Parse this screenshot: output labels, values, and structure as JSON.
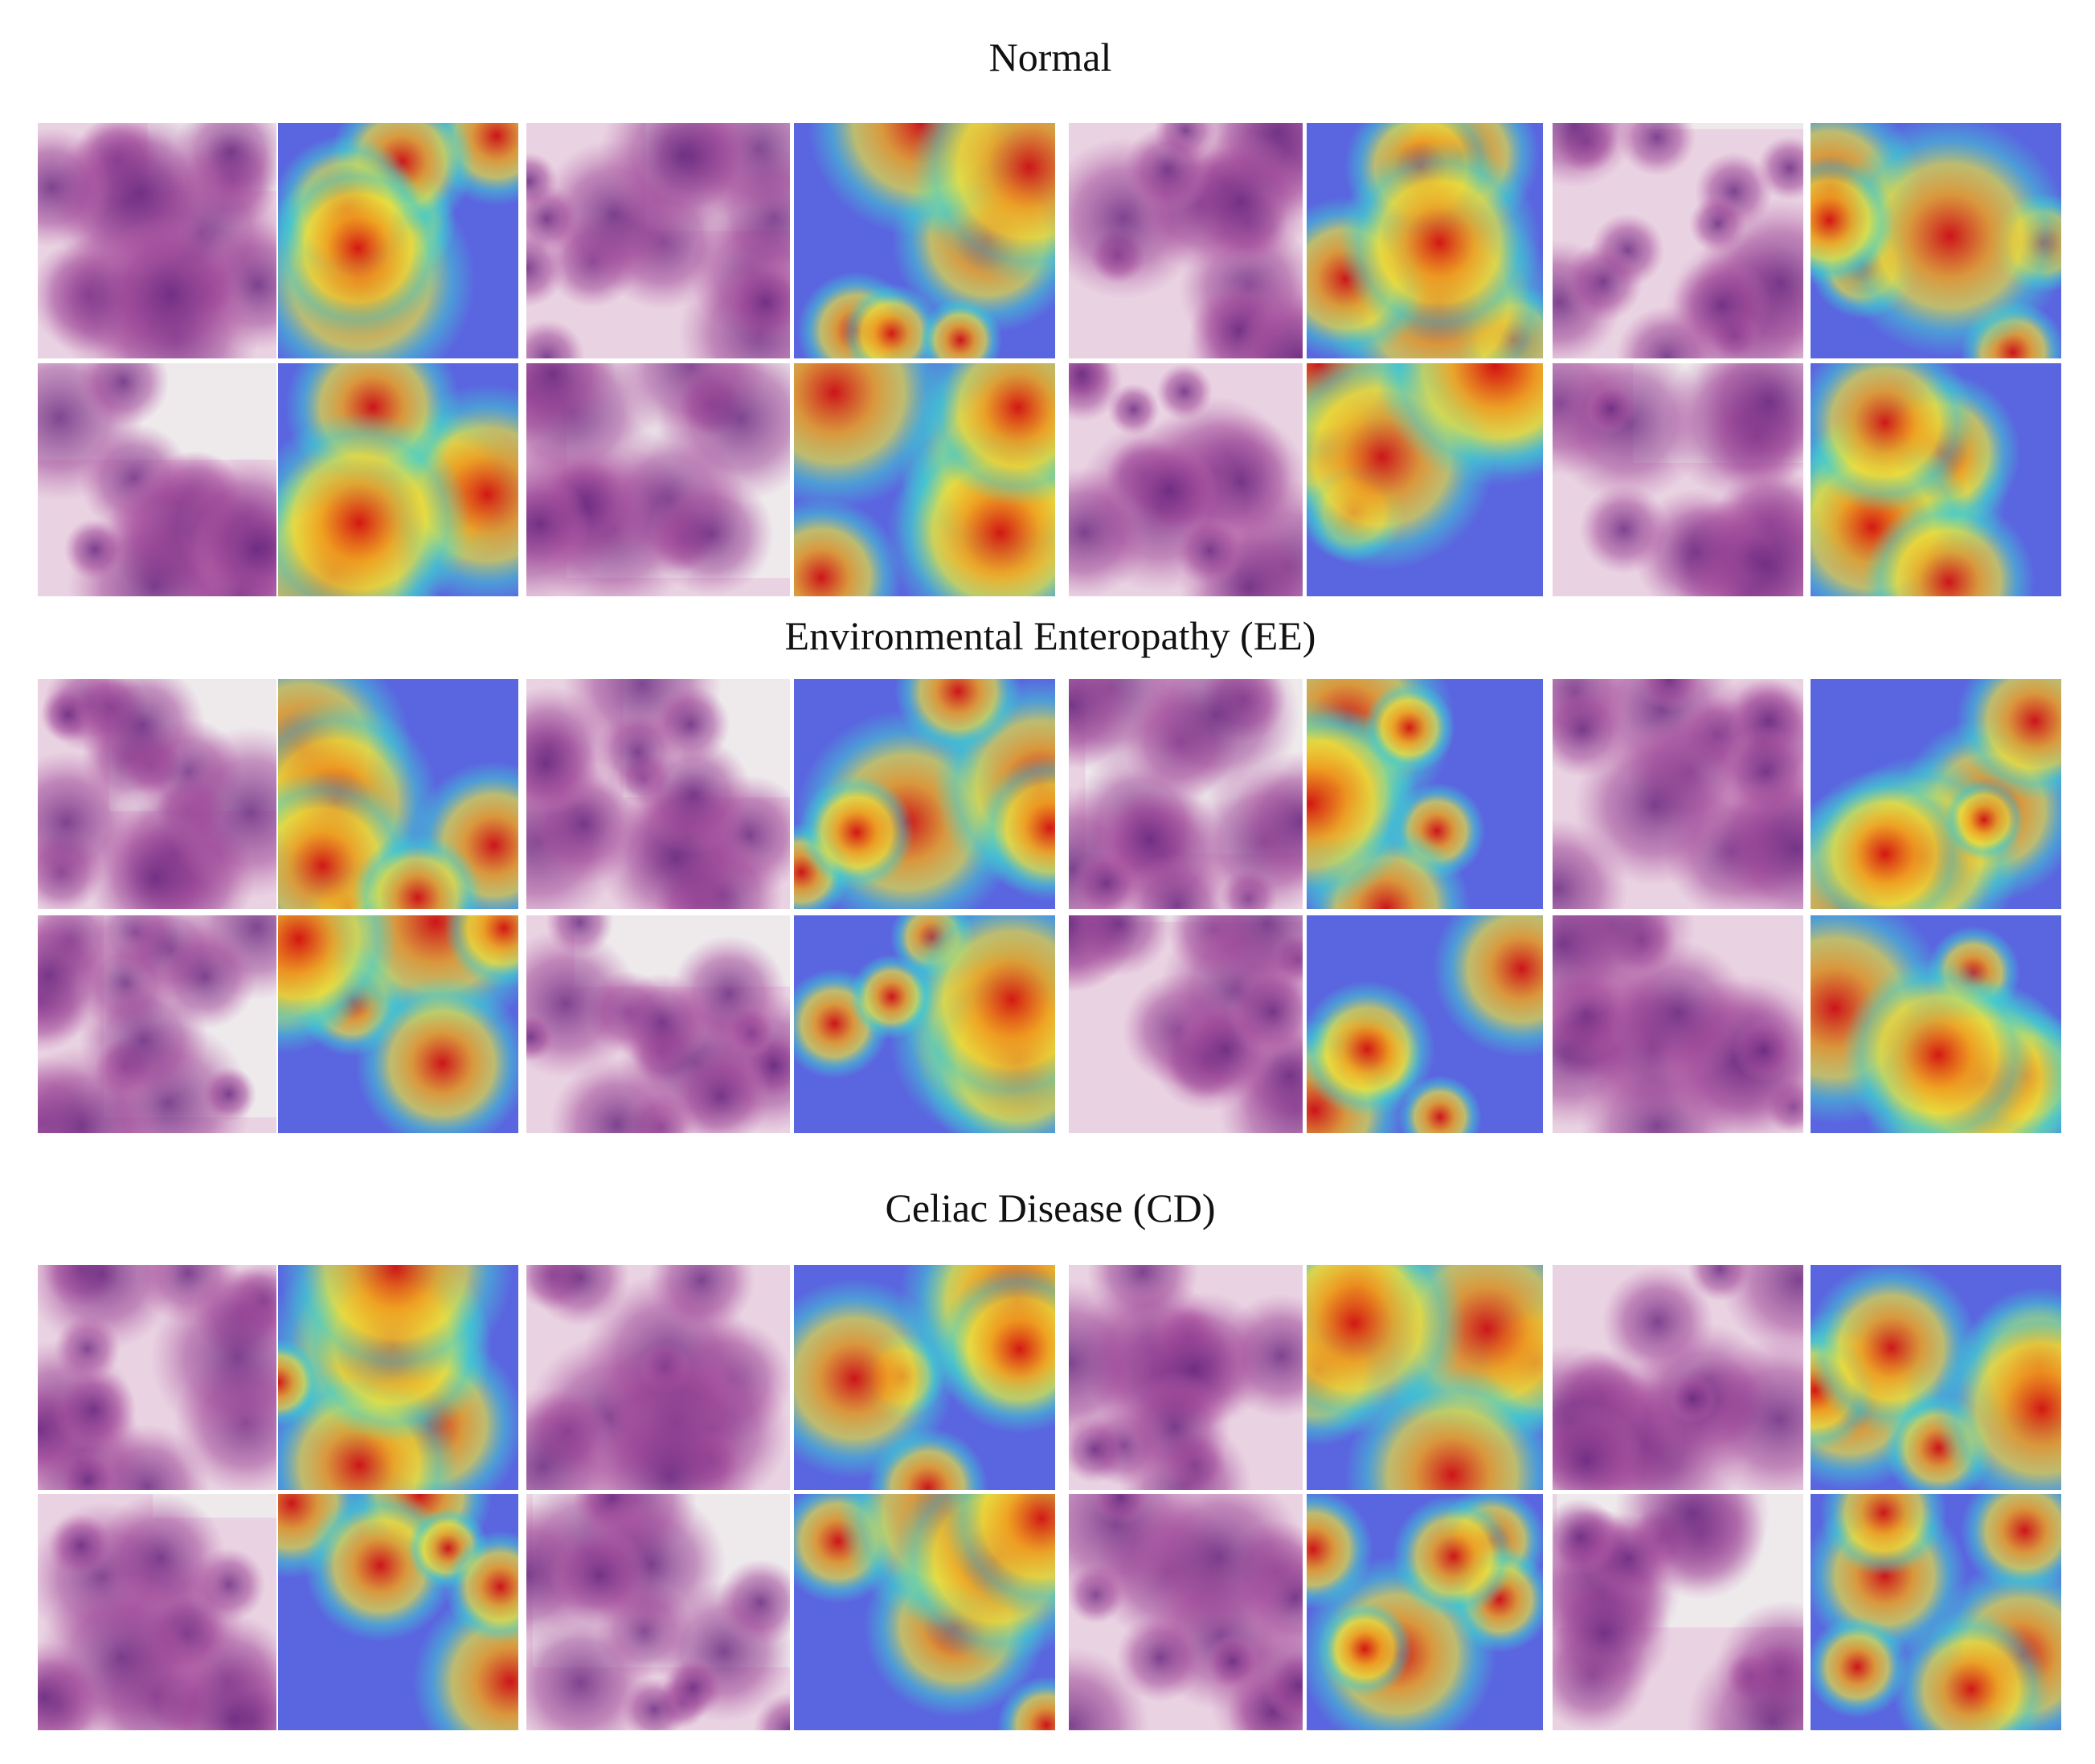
{
  "sections": [
    {
      "title": "Normal"
    },
    {
      "title": "Environmental Enteropathy (EE)"
    },
    {
      "title": "Celiac Disease (CD)"
    }
  ]
}
